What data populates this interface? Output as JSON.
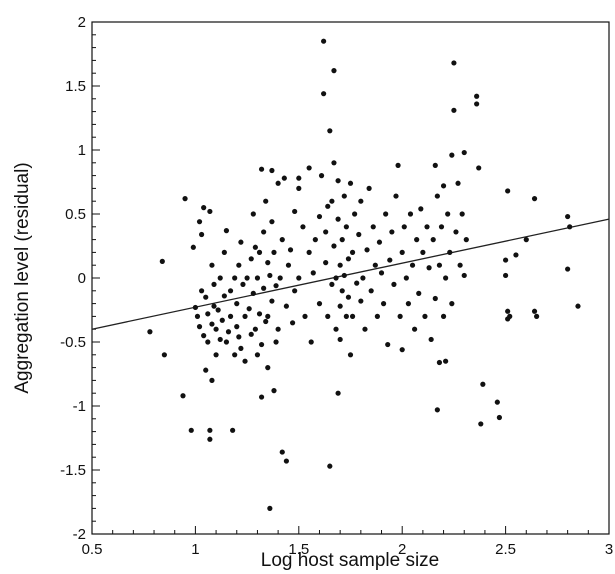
{
  "chart_data": {
    "type": "scatter",
    "xlabel": "Log host sample size",
    "ylabel": "Aggregation level (residual)",
    "xlim": [
      0.5,
      3
    ],
    "ylim": [
      -2,
      2
    ],
    "xticks": [
      "0.5",
      "1",
      "1.5",
      "2",
      "2.5",
      "3"
    ],
    "yticks": [
      "-2",
      "-1.5",
      "-1",
      "-0.5",
      "0",
      "0.5",
      "1",
      "1.5",
      "2"
    ],
    "grid": false,
    "trend_line": {
      "x": [
        0.5,
        3
      ],
      "y": [
        -0.4,
        0.46
      ]
    },
    "colors": {
      "points": "#111111",
      "line": "#222222",
      "axis": "#111111"
    },
    "points": [
      [
        0.78,
        -0.42
      ],
      [
        0.84,
        0.13
      ],
      [
        0.85,
        -0.6
      ],
      [
        0.94,
        -0.92
      ],
      [
        0.95,
        0.62
      ],
      [
        0.98,
        -1.19
      ],
      [
        0.99,
        0.24
      ],
      [
        1.0,
        -0.23
      ],
      [
        1.01,
        -0.3
      ],
      [
        1.02,
        -0.38
      ],
      [
        1.02,
        0.44
      ],
      [
        1.03,
        -0.1
      ],
      [
        1.03,
        0.34
      ],
      [
        1.04,
        -0.45
      ],
      [
        1.04,
        0.55
      ],
      [
        1.05,
        -0.15
      ],
      [
        1.05,
        -0.72
      ],
      [
        1.06,
        -0.5
      ],
      [
        1.06,
        -0.28
      ],
      [
        1.07,
        -1.19
      ],
      [
        1.07,
        -1.26
      ],
      [
        1.07,
        0.52
      ],
      [
        1.08,
        -0.36
      ],
      [
        1.08,
        -0.8
      ],
      [
        1.08,
        0.1
      ],
      [
        1.09,
        -0.22
      ],
      [
        1.09,
        -0.05
      ],
      [
        1.1,
        -0.4
      ],
      [
        1.1,
        -0.6
      ],
      [
        1.11,
        -0.25
      ],
      [
        1.12,
        0.0
      ],
      [
        1.12,
        -0.48
      ],
      [
        1.13,
        -0.33
      ],
      [
        1.14,
        0.2
      ],
      [
        1.14,
        -0.14
      ],
      [
        1.15,
        -0.5
      ],
      [
        1.15,
        0.37
      ],
      [
        1.16,
        -0.42
      ],
      [
        1.17,
        -0.1
      ],
      [
        1.17,
        -0.3
      ],
      [
        1.18,
        -1.19
      ],
      [
        1.19,
        -0.6
      ],
      [
        1.19,
        0.0
      ],
      [
        1.2,
        -0.2
      ],
      [
        1.2,
        -0.38
      ],
      [
        1.21,
        -0.46
      ],
      [
        1.21,
        0.1
      ],
      [
        1.22,
        0.28
      ],
      [
        1.22,
        -0.55
      ],
      [
        1.23,
        -0.05
      ],
      [
        1.24,
        -0.3
      ],
      [
        1.24,
        -0.65
      ],
      [
        1.25,
        0.0
      ],
      [
        1.26,
        -0.24
      ],
      [
        1.27,
        0.15
      ],
      [
        1.27,
        -0.44
      ],
      [
        1.28,
        0.5
      ],
      [
        1.28,
        -0.12
      ],
      [
        1.29,
        -0.4
      ],
      [
        1.29,
        0.24
      ],
      [
        1.3,
        0.0
      ],
      [
        1.3,
        -0.6
      ],
      [
        1.31,
        0.2
      ],
      [
        1.31,
        -0.28
      ],
      [
        1.32,
        0.85
      ],
      [
        1.32,
        -0.93
      ],
      [
        1.32,
        -0.52
      ],
      [
        1.33,
        0.36
      ],
      [
        1.33,
        -0.08
      ],
      [
        1.34,
        -0.34
      ],
      [
        1.34,
        0.6
      ],
      [
        1.35,
        0.12
      ],
      [
        1.35,
        -0.7
      ],
      [
        1.35,
        -0.3
      ],
      [
        1.36,
        0.02
      ],
      [
        1.36,
        -1.8
      ],
      [
        1.37,
        0.84
      ],
      [
        1.37,
        -0.18
      ],
      [
        1.37,
        0.44
      ],
      [
        1.38,
        -0.88
      ],
      [
        1.38,
        0.2
      ],
      [
        1.39,
        -0.5
      ],
      [
        1.39,
        -0.06
      ],
      [
        1.4,
        0.74
      ],
      [
        1.4,
        -0.4
      ],
      [
        1.41,
        0.0
      ],
      [
        1.42,
        -1.36
      ],
      [
        1.42,
        0.3
      ],
      [
        1.43,
        0.78
      ],
      [
        1.44,
        -1.43
      ],
      [
        1.44,
        -0.22
      ],
      [
        1.45,
        0.1
      ],
      [
        1.46,
        0.22
      ],
      [
        1.47,
        -0.35
      ],
      [
        1.48,
        -0.1
      ],
      [
        1.48,
        0.52
      ],
      [
        1.5,
        0.7
      ],
      [
        1.5,
        0.78
      ],
      [
        1.5,
        0.0
      ],
      [
        1.52,
        0.4
      ],
      [
        1.53,
        -0.3
      ],
      [
        1.55,
        0.2
      ],
      [
        1.55,
        0.86
      ],
      [
        1.56,
        -0.5
      ],
      [
        1.57,
        0.04
      ],
      [
        1.58,
        0.3
      ],
      [
        1.6,
        -0.2
      ],
      [
        1.6,
        0.48
      ],
      [
        1.61,
        0.8
      ],
      [
        1.62,
        1.85
      ],
      [
        1.62,
        1.44
      ],
      [
        1.63,
        0.12
      ],
      [
        1.63,
        0.36
      ],
      [
        1.64,
        -0.3
      ],
      [
        1.64,
        0.56
      ],
      [
        1.65,
        -1.47
      ],
      [
        1.65,
        1.15
      ],
      [
        1.66,
        0.6
      ],
      [
        1.66,
        -0.05
      ],
      [
        1.67,
        1.62
      ],
      [
        1.67,
        0.25
      ],
      [
        1.67,
        0.9
      ],
      [
        1.68,
        -0.4
      ],
      [
        1.68,
        0.0
      ],
      [
        1.69,
        0.46
      ],
      [
        1.69,
        -0.9
      ],
      [
        1.69,
        0.76
      ],
      [
        1.7,
        0.1
      ],
      [
        1.7,
        -0.22
      ],
      [
        1.7,
        -0.48
      ],
      [
        1.71,
        0.3
      ],
      [
        1.71,
        -0.1
      ],
      [
        1.72,
        0.64
      ],
      [
        1.72,
        0.02
      ],
      [
        1.73,
        -0.3
      ],
      [
        1.73,
        0.4
      ],
      [
        1.74,
        -0.15
      ],
      [
        1.74,
        0.15
      ],
      [
        1.75,
        -0.6
      ],
      [
        1.75,
        0.74
      ],
      [
        1.76,
        0.2
      ],
      [
        1.76,
        -0.3
      ],
      [
        1.77,
        0.5
      ],
      [
        1.78,
        -0.04
      ],
      [
        1.79,
        0.34
      ],
      [
        1.8,
        -0.18
      ],
      [
        1.8,
        0.6
      ],
      [
        1.81,
        0.0
      ],
      [
        1.82,
        -0.4
      ],
      [
        1.83,
        0.22
      ],
      [
        1.84,
        0.7
      ],
      [
        1.85,
        -0.1
      ],
      [
        1.86,
        0.4
      ],
      [
        1.87,
        0.1
      ],
      [
        1.88,
        -0.3
      ],
      [
        1.89,
        0.28
      ],
      [
        1.9,
        0.04
      ],
      [
        1.91,
        -0.2
      ],
      [
        1.92,
        0.5
      ],
      [
        1.93,
        -0.52
      ],
      [
        1.94,
        0.14
      ],
      [
        1.95,
        0.36
      ],
      [
        1.96,
        -0.05
      ],
      [
        1.97,
        0.64
      ],
      [
        1.98,
        0.88
      ],
      [
        1.99,
        -0.3
      ],
      [
        2.0,
        0.2
      ],
      [
        2.0,
        -0.56
      ],
      [
        2.01,
        0.4
      ],
      [
        2.02,
        0.0
      ],
      [
        2.03,
        -0.2
      ],
      [
        2.04,
        0.5
      ],
      [
        2.05,
        0.1
      ],
      [
        2.06,
        -0.4
      ],
      [
        2.07,
        0.3
      ],
      [
        2.08,
        -0.12
      ],
      [
        2.09,
        0.54
      ],
      [
        2.1,
        0.2
      ],
      [
        2.11,
        -0.3
      ],
      [
        2.12,
        0.4
      ],
      [
        2.13,
        0.08
      ],
      [
        2.14,
        -0.48
      ],
      [
        2.15,
        0.3
      ],
      [
        2.16,
        0.88
      ],
      [
        2.16,
        -0.16
      ],
      [
        2.17,
        -1.03
      ],
      [
        2.17,
        0.64
      ],
      [
        2.18,
        0.1
      ],
      [
        2.18,
        -0.66
      ],
      [
        2.19,
        0.4
      ],
      [
        2.2,
        0.72
      ],
      [
        2.2,
        -0.3
      ],
      [
        2.21,
        0.0
      ],
      [
        2.21,
        -0.65
      ],
      [
        2.22,
        0.5
      ],
      [
        2.23,
        0.2
      ],
      [
        2.24,
        0.96
      ],
      [
        2.24,
        -0.2
      ],
      [
        2.25,
        1.31
      ],
      [
        2.25,
        1.68
      ],
      [
        2.26,
        0.36
      ],
      [
        2.27,
        0.74
      ],
      [
        2.28,
        0.1
      ],
      [
        2.29,
        0.5
      ],
      [
        2.3,
        0.98
      ],
      [
        2.3,
        0.02
      ],
      [
        2.31,
        0.3
      ],
      [
        2.36,
        1.42
      ],
      [
        2.36,
        1.36
      ],
      [
        2.37,
        0.86
      ],
      [
        2.38,
        -1.14
      ],
      [
        2.39,
        -0.83
      ],
      [
        2.46,
        -0.97
      ],
      [
        2.47,
        -1.09
      ],
      [
        2.5,
        0.14
      ],
      [
        2.5,
        0.02
      ],
      [
        2.51,
        0.68
      ],
      [
        2.51,
        -0.26
      ],
      [
        2.51,
        -0.32
      ],
      [
        2.52,
        -0.3
      ],
      [
        2.55,
        0.18
      ],
      [
        2.6,
        0.3
      ],
      [
        2.64,
        0.62
      ],
      [
        2.64,
        -0.26
      ],
      [
        2.65,
        -0.3
      ],
      [
        2.8,
        0.48
      ],
      [
        2.8,
        0.07
      ],
      [
        2.81,
        0.4
      ],
      [
        2.85,
        -0.22
      ]
    ]
  }
}
